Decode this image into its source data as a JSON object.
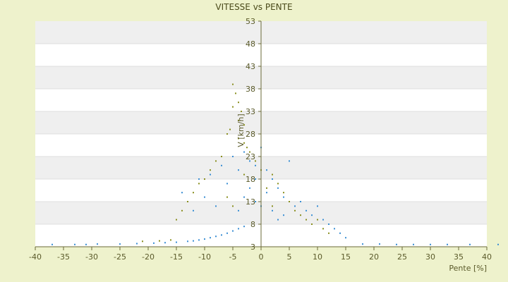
{
  "chart_data": {
    "type": "scatter",
    "title": "VITESSE vs PENTE",
    "xlabel": "Pente [%]",
    "ylabel": "V [km/h]",
    "xlim": [
      -40,
      40
    ],
    "ylim": [
      3,
      53
    ],
    "xticks": [
      "-40",
      "-35",
      "-30",
      "-25",
      "-20",
      "-15",
      "-10",
      "-5",
      "0",
      "5",
      "10",
      "15",
      "20",
      "25",
      "30",
      "35",
      "40"
    ],
    "yticks": [
      "53",
      "48",
      "43",
      "38",
      "33",
      "28",
      "23",
      "18",
      "13",
      "8",
      "3"
    ],
    "grid": "horizontal bands",
    "series": [
      {
        "color": "#3b8fd4",
        "points": [
          [
            -37,
            3.5
          ],
          [
            -33,
            3.5
          ],
          [
            -31,
            3.5
          ],
          [
            -29,
            3.6
          ],
          [
            -25,
            3.6
          ],
          [
            -22,
            3.7
          ],
          [
            -19,
            3.8
          ],
          [
            -17,
            3.9
          ],
          [
            -15,
            4.0
          ],
          [
            -13,
            4.2
          ],
          [
            -12,
            4.3
          ],
          [
            -11,
            4.5
          ],
          [
            -10,
            4.7
          ],
          [
            -9,
            5
          ],
          [
            -8,
            5.3
          ],
          [
            -7,
            5.6
          ],
          [
            -6,
            6
          ],
          [
            -5,
            6.5
          ],
          [
            -4,
            7
          ],
          [
            -3,
            7.5
          ],
          [
            -14,
            15
          ],
          [
            -13,
            13
          ],
          [
            -12,
            11
          ],
          [
            -11,
            18
          ],
          [
            -10,
            14
          ],
          [
            -9,
            19
          ],
          [
            -8,
            12
          ],
          [
            -7,
            21
          ],
          [
            -6,
            17
          ],
          [
            -5,
            23
          ],
          [
            -4,
            20
          ],
          [
            -3,
            24
          ],
          [
            -2,
            22
          ],
          [
            -1,
            21
          ],
          [
            0,
            25
          ],
          [
            1,
            20
          ],
          [
            2,
            18
          ],
          [
            3,
            16
          ],
          [
            4,
            14
          ],
          [
            5,
            22
          ],
          [
            6,
            12
          ],
          [
            7,
            13
          ],
          [
            8,
            11
          ],
          [
            9,
            10
          ],
          [
            10,
            12
          ],
          [
            11,
            9
          ],
          [
            12,
            8
          ],
          [
            13,
            7
          ],
          [
            14,
            6
          ],
          [
            15,
            5
          ],
          [
            -2,
            16
          ],
          [
            -1,
            13
          ],
          [
            0,
            12
          ],
          [
            1,
            15
          ],
          [
            2,
            11
          ],
          [
            -3,
            14
          ],
          [
            -4,
            11
          ],
          [
            3,
            9
          ],
          [
            4,
            10
          ],
          [
            -1,
            18
          ],
          [
            18,
            3.6
          ],
          [
            21,
            3.6
          ],
          [
            24,
            3.5
          ],
          [
            27,
            3.5
          ],
          [
            30,
            3.5
          ],
          [
            33,
            3.5
          ],
          [
            37,
            3.5
          ],
          [
            42,
            3.5
          ]
        ]
      },
      {
        "color": "#8a8f1f",
        "points": [
          [
            -5,
            39
          ],
          [
            -4.5,
            37
          ],
          [
            -4,
            35
          ],
          [
            -5,
            34
          ],
          [
            -3.5,
            33
          ],
          [
            -4,
            31
          ],
          [
            -3,
            30
          ],
          [
            -5.5,
            29
          ],
          [
            -6,
            28
          ],
          [
            -4,
            27
          ],
          [
            -3,
            26
          ],
          [
            -2.5,
            25
          ],
          [
            -2,
            24
          ],
          [
            -7,
            23
          ],
          [
            -8,
            22
          ],
          [
            -9,
            20
          ],
          [
            -10,
            18
          ],
          [
            -11,
            17
          ],
          [
            -12,
            15
          ],
          [
            -13,
            13
          ],
          [
            -14,
            11
          ],
          [
            -15,
            9
          ],
          [
            -1,
            22
          ],
          [
            0,
            20
          ],
          [
            2,
            19
          ],
          [
            3,
            17
          ],
          [
            4,
            15
          ],
          [
            5,
            13
          ],
          [
            6,
            11
          ],
          [
            7,
            10
          ],
          [
            8,
            9
          ],
          [
            9,
            8
          ],
          [
            10,
            9
          ],
          [
            11,
            7
          ],
          [
            12,
            6
          ],
          [
            -6,
            14
          ],
          [
            -5,
            12
          ],
          [
            -3,
            19
          ],
          [
            1,
            16
          ],
          [
            2,
            12
          ],
          [
            -21,
            4.2
          ],
          [
            -18,
            4.3
          ],
          [
            -16,
            4.5
          ]
        ]
      }
    ]
  }
}
